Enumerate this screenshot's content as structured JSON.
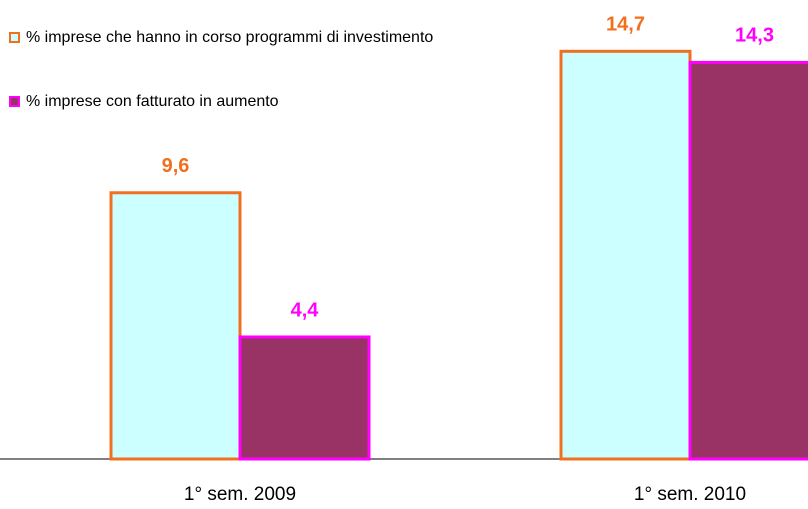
{
  "chart_data": {
    "type": "bar",
    "categories": [
      "1° sem. 2009",
      "1° sem. 2010"
    ],
    "series": [
      {
        "name": "% imprese che hanno in corso programmi di investimento",
        "color": "#ccffff",
        "edge_color": "#f07020",
        "values": [
          9.6,
          14.7
        ],
        "value_labels": [
          "9,6",
          "14,7"
        ]
      },
      {
        "name": "% imprese con fatturato in aumento",
        "color": "#993366",
        "edge_color": "#ff00ff",
        "values": [
          4.4,
          14.3
        ],
        "value_labels": [
          "4,4",
          "14,3"
        ]
      }
    ],
    "ylim": [
      0,
      15
    ],
    "legend": "top-left"
  }
}
